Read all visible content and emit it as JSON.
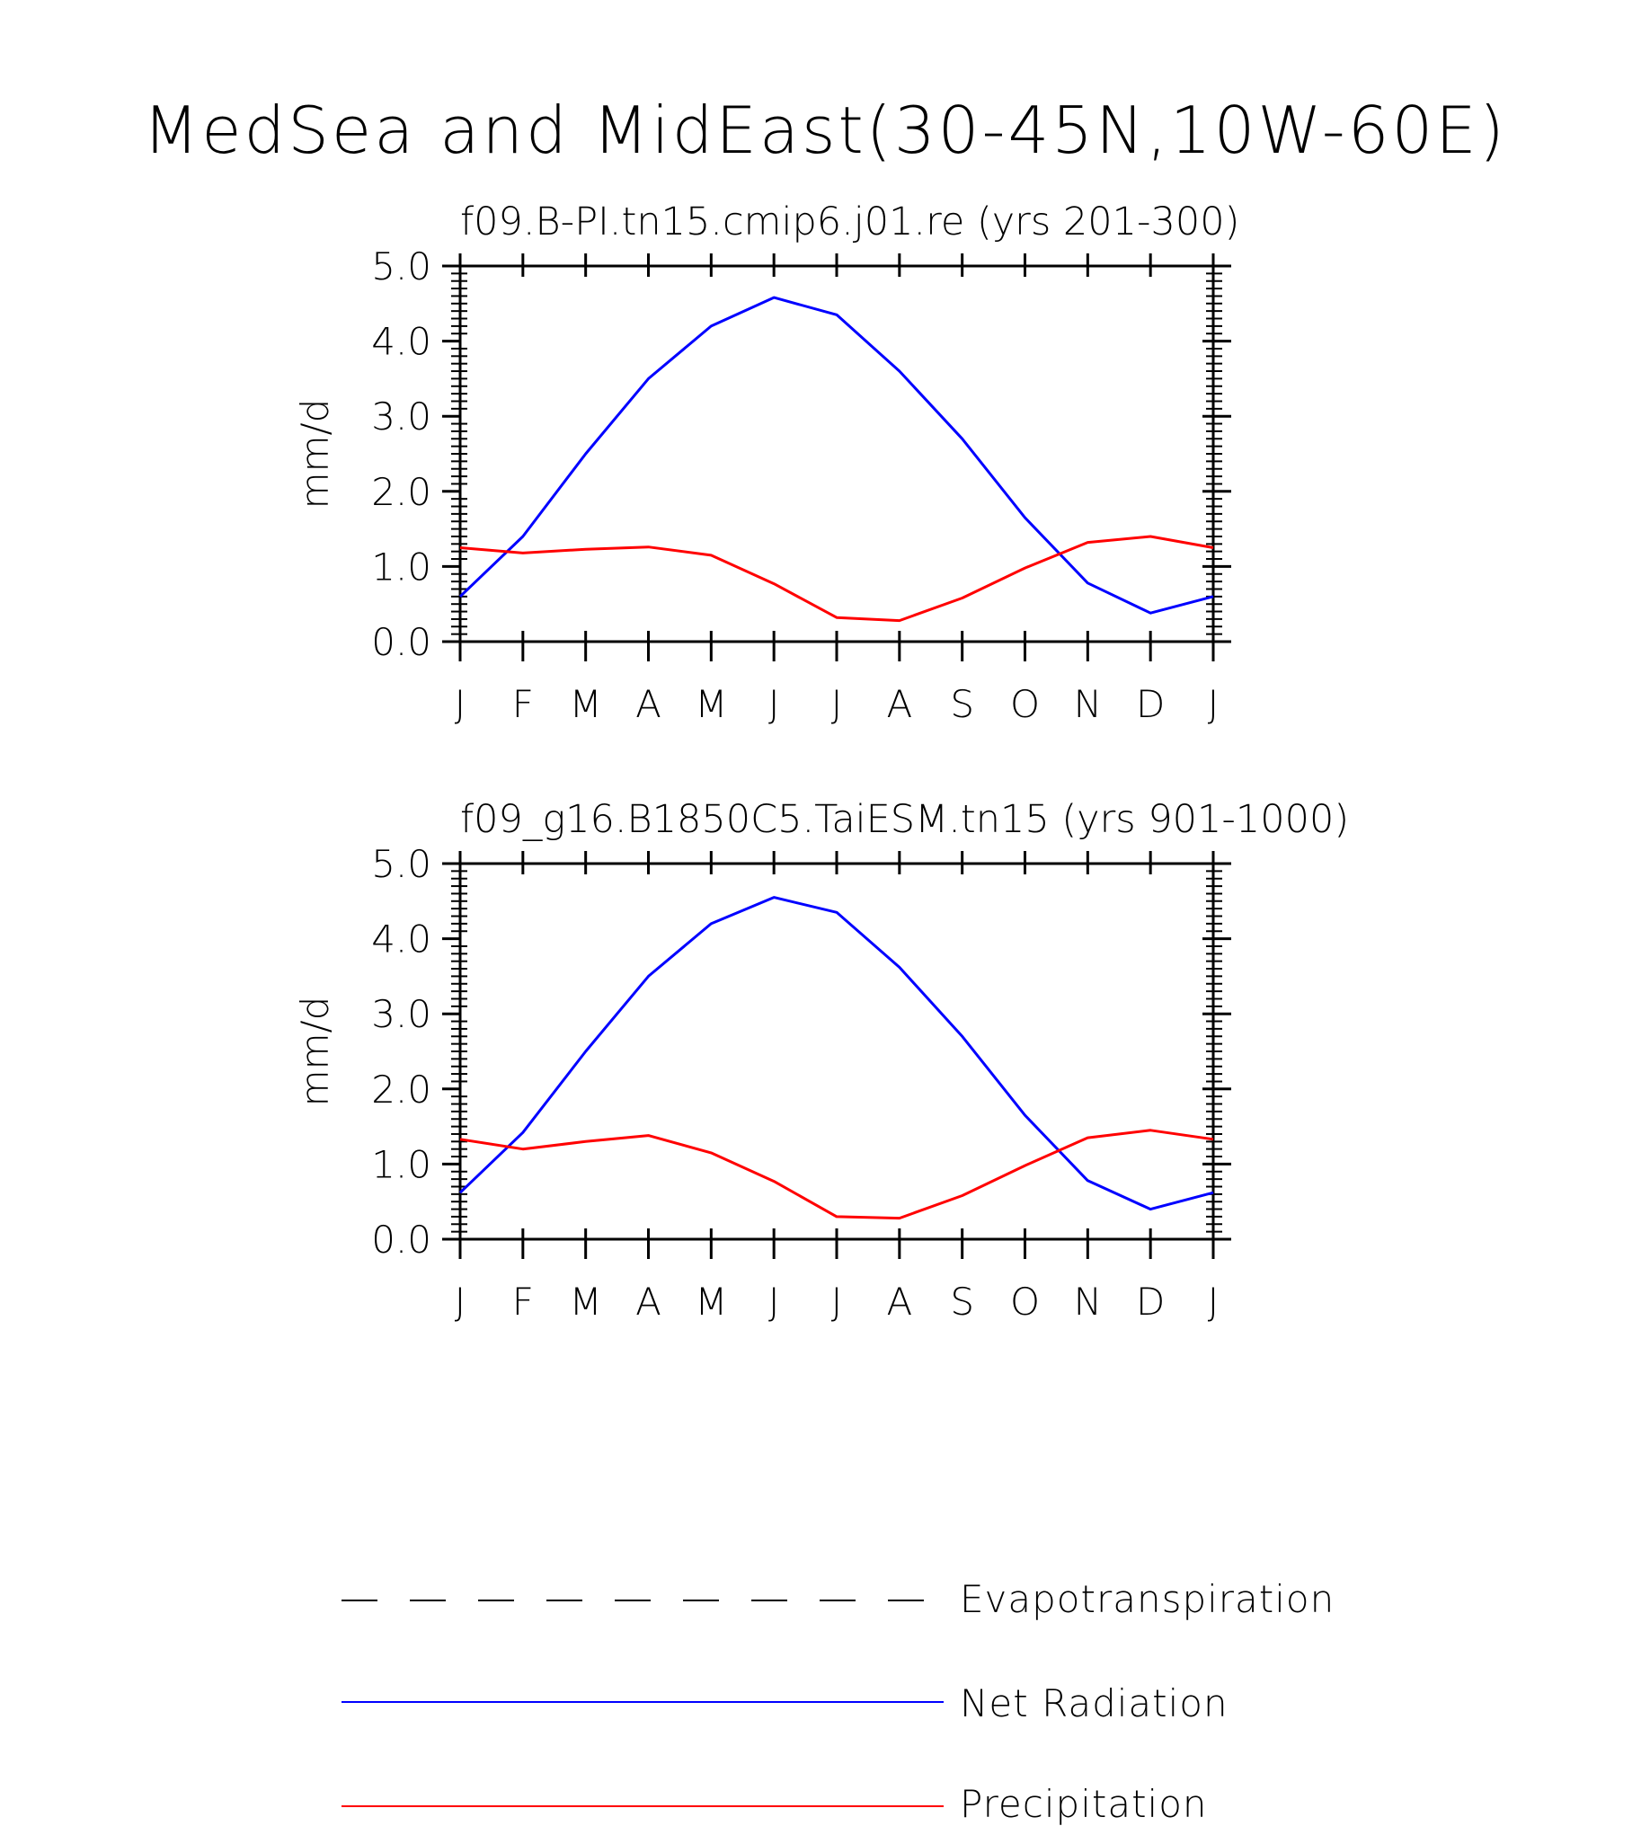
{
  "title": "MedSea and MidEast(30-45N,10W-60E)",
  "colors": {
    "Evapotranspiration": "#000000",
    "Net Radiation": "#0000ff",
    "Precipitation": "#ff0000"
  },
  "legend": [
    {
      "name": "Evapotranspiration",
      "color": "#000000",
      "style": "dashed"
    },
    {
      "name": "Net Radiation",
      "color": "#0000ff",
      "style": "solid"
    },
    {
      "name": "Precipitation",
      "color": "#ff0000",
      "style": "solid"
    }
  ],
  "chart_data": [
    {
      "type": "line",
      "title": "f09.B-PI.tn15.cmip6.j01.re (yrs 201-300)",
      "xlabel": "",
      "ylabel": "mm/d",
      "ylim": [
        0,
        5
      ],
      "yticks": [
        "0.0",
        "1.0",
        "2.0",
        "3.0",
        "4.0",
        "5.0"
      ],
      "categories": [
        "J",
        "F",
        "M",
        "A",
        "M",
        "J",
        "J",
        "A",
        "S",
        "O",
        "N",
        "D",
        "J"
      ],
      "grid": false,
      "series": [
        {
          "name": "Net Radiation",
          "values": [
            0.6,
            1.4,
            2.5,
            3.5,
            4.2,
            4.58,
            4.35,
            3.6,
            2.7,
            1.65,
            0.78,
            0.38,
            0.6
          ]
        },
        {
          "name": "Precipitation",
          "values": [
            1.25,
            1.18,
            1.23,
            1.26,
            1.15,
            0.77,
            0.32,
            0.28,
            0.58,
            0.98,
            1.32,
            1.4,
            1.25
          ]
        }
      ]
    },
    {
      "type": "line",
      "title": "f09_g16.B1850C5.TaiESM.tn15 (yrs 901-1000)",
      "xlabel": "",
      "ylabel": "mm/d",
      "ylim": [
        0,
        5
      ],
      "yticks": [
        "0.0",
        "1.0",
        "2.0",
        "3.0",
        "4.0",
        "5.0"
      ],
      "categories": [
        "J",
        "F",
        "M",
        "A",
        "M",
        "J",
        "J",
        "A",
        "S",
        "O",
        "N",
        "D",
        "J"
      ],
      "grid": false,
      "series": [
        {
          "name": "Net Radiation",
          "values": [
            0.62,
            1.42,
            2.5,
            3.5,
            4.2,
            4.55,
            4.35,
            3.62,
            2.7,
            1.65,
            0.78,
            0.4,
            0.62
          ]
        },
        {
          "name": "Precipitation",
          "values": [
            1.33,
            1.2,
            1.3,
            1.38,
            1.15,
            0.77,
            0.3,
            0.28,
            0.58,
            0.98,
            1.35,
            1.45,
            1.33
          ]
        }
      ]
    }
  ]
}
